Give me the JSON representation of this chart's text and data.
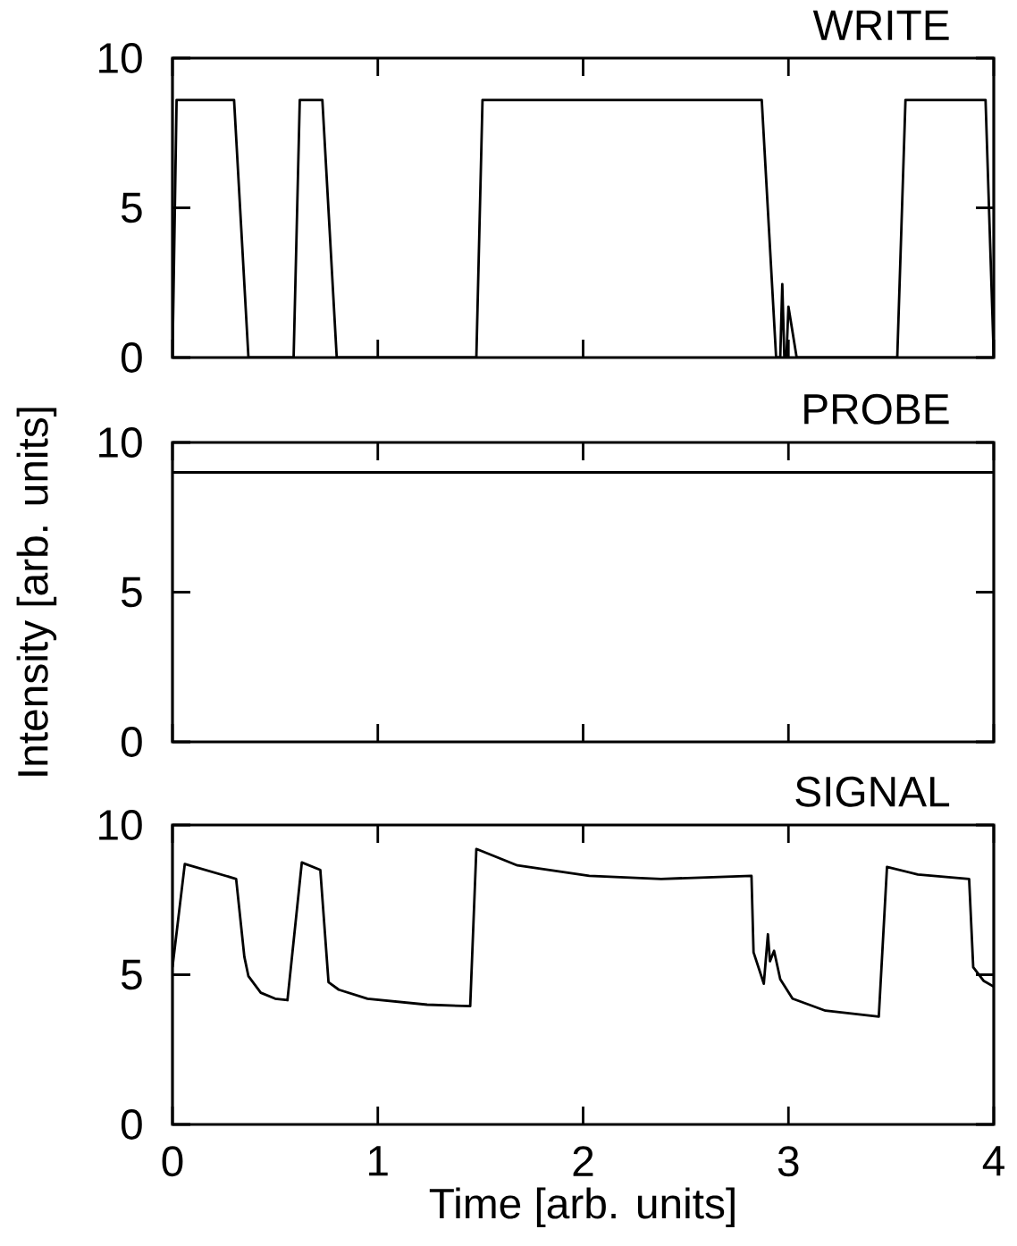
{
  "chart_data": [
    {
      "type": "line",
      "title": "WRITE",
      "xlim": [
        0,
        4
      ],
      "ylim": [
        0,
        10
      ],
      "xticks": [
        0,
        1,
        2,
        3,
        4
      ],
      "yticks": [
        0,
        5,
        10
      ],
      "tick_labels": "y",
      "color": "#000000",
      "x": [
        0,
        0.02,
        0.3,
        0.37,
        0.59,
        0.62,
        0.73,
        0.8,
        1.48,
        1.51,
        2.87,
        2.94,
        2.96,
        2.97,
        2.98,
        2.99,
        3.0,
        3.04,
        3.53,
        3.57,
        3.96,
        4.0
      ],
      "values": [
        0,
        8.6,
        8.6,
        0,
        0,
        8.6,
        8.6,
        0,
        0,
        8.6,
        8.6,
        0,
        0,
        2.45,
        0,
        0,
        1.7,
        0,
        0,
        8.6,
        8.6,
        0
      ]
    },
    {
      "type": "line",
      "title": "PROBE",
      "ylabel": "Intensity [arb. units]",
      "xlim": [
        0,
        4
      ],
      "ylim": [
        0,
        10
      ],
      "xticks": [
        0,
        1,
        2,
        3,
        4
      ],
      "yticks": [
        0,
        5,
        10
      ],
      "tick_labels": "y",
      "color": "#000000",
      "x": [
        0,
        4
      ],
      "values": [
        9.0,
        9.0
      ]
    },
    {
      "type": "line",
      "title": "SIGNAL",
      "xlabel": "Time [arb. units]",
      "xlim": [
        0,
        4
      ],
      "ylim": [
        0,
        10
      ],
      "xticks": [
        0,
        1,
        2,
        3,
        4
      ],
      "yticks": [
        0,
        5,
        10
      ],
      "color": "#000000",
      "x": [
        0,
        0.06,
        0.31,
        0.35,
        0.37,
        0.43,
        0.5,
        0.56,
        0.63,
        0.72,
        0.76,
        0.81,
        0.95,
        1.24,
        1.45,
        1.48,
        1.68,
        2.03,
        2.38,
        2.82,
        2.83,
        2.88,
        2.9,
        2.91,
        2.93,
        2.96,
        3.02,
        3.18,
        3.44,
        3.48,
        3.63,
        3.88,
        3.9,
        3.95,
        4.0
      ],
      "values": [
        5.25,
        8.7,
        8.2,
        5.6,
        4.95,
        4.4,
        4.2,
        4.15,
        8.75,
        8.5,
        4.75,
        4.5,
        4.2,
        4.0,
        3.95,
        9.2,
        8.65,
        8.3,
        8.2,
        8.3,
        5.75,
        4.7,
        6.35,
        5.45,
        5.8,
        4.85,
        4.2,
        3.8,
        3.6,
        8.6,
        8.35,
        8.2,
        5.25,
        4.8,
        4.6
      ]
    }
  ]
}
